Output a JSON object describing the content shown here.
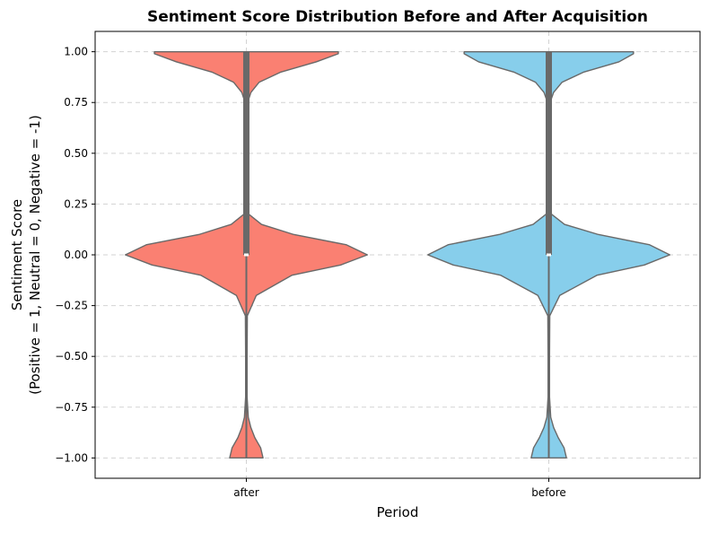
{
  "chart_data": {
    "type": "violin",
    "title": "Sentiment Score Distribution Before and After Acquisition",
    "xlabel": "Period",
    "ylabel_lines": [
      "Sentiment Score",
      "(Positive = 1, Neutral = 0, Negative = -1)"
    ],
    "categories": [
      "after",
      "before"
    ],
    "ylim": [
      -1.1,
      1.1
    ],
    "yticks": [
      1.0,
      0.75,
      0.5,
      0.25,
      0.0,
      -0.25,
      -0.5,
      -0.75,
      -1.0
    ],
    "ytick_labels": [
      "1.00",
      "0.75",
      "0.50",
      "0.25",
      "0.00",
      "−0.25",
      "−0.50",
      "−0.75",
      "−1.00"
    ],
    "grid": true,
    "series": [
      {
        "category": "after",
        "color": "#fa8072",
        "quartiles": {
          "q1": 0.0,
          "median": 0.0,
          "q3": 1.0
        },
        "whiskers": [
          -1.0,
          1.0
        ],
        "density": [
          [
            -1.0,
            0.138
          ],
          [
            -0.95,
            0.118
          ],
          [
            -0.9,
            0.07
          ],
          [
            -0.85,
            0.037
          ],
          [
            -0.8,
            0.016
          ],
          [
            -0.7,
            0.006
          ],
          [
            -0.5,
            0.006
          ],
          [
            -0.3,
            0.008
          ],
          [
            -0.2,
            0.082
          ],
          [
            -0.1,
            0.378
          ],
          [
            -0.05,
            0.78
          ],
          [
            0.0,
            1.0
          ],
          [
            0.05,
            0.824
          ],
          [
            0.1,
            0.392
          ],
          [
            0.15,
            0.125
          ],
          [
            0.2,
            0.02
          ],
          [
            0.25,
            0.012
          ],
          [
            0.4,
            0.006
          ],
          [
            0.6,
            0.006
          ],
          [
            0.75,
            0.01
          ],
          [
            0.8,
            0.038
          ],
          [
            0.85,
            0.106
          ],
          [
            0.9,
            0.286
          ],
          [
            0.95,
            0.578
          ],
          [
            0.99,
            0.76
          ],
          [
            1.0,
            0.76
          ]
        ]
      },
      {
        "category": "before",
        "color": "#87ceeb",
        "quartiles": {
          "q1": 0.0,
          "median": 0.0,
          "q3": 1.0
        },
        "whiskers": [
          -1.0,
          1.0
        ],
        "density": [
          [
            -1.0,
            0.146
          ],
          [
            -0.95,
            0.126
          ],
          [
            -0.9,
            0.078
          ],
          [
            -0.85,
            0.04
          ],
          [
            -0.8,
            0.016
          ],
          [
            -0.7,
            0.006
          ],
          [
            -0.5,
            0.006
          ],
          [
            -0.3,
            0.008
          ],
          [
            -0.2,
            0.09
          ],
          [
            -0.1,
            0.4
          ],
          [
            -0.05,
            0.79
          ],
          [
            0.0,
            1.0
          ],
          [
            0.05,
            0.83
          ],
          [
            0.1,
            0.41
          ],
          [
            0.15,
            0.13
          ],
          [
            0.2,
            0.022
          ],
          [
            0.25,
            0.012
          ],
          [
            0.4,
            0.006
          ],
          [
            0.6,
            0.006
          ],
          [
            0.75,
            0.01
          ],
          [
            0.8,
            0.04
          ],
          [
            0.85,
            0.11
          ],
          [
            0.9,
            0.29
          ],
          [
            0.95,
            0.58
          ],
          [
            0.99,
            0.7
          ],
          [
            1.0,
            0.7
          ]
        ]
      }
    ]
  }
}
